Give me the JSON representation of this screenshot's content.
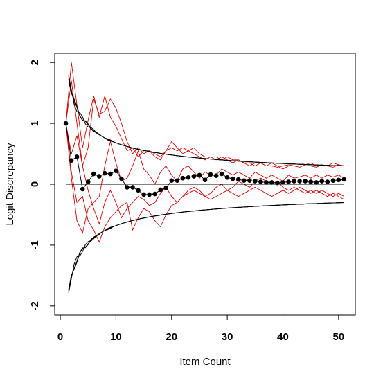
{
  "chart_data": {
    "type": "line",
    "title": "",
    "xlabel": "Item Count",
    "ylabel": "Logit Discrepancy",
    "xlim": [
      -1,
      53
    ],
    "ylim": [
      -2.15,
      2.15
    ],
    "x_ticks": [
      0,
      10,
      20,
      30,
      40,
      50
    ],
    "y_ticks": [
      -2,
      -1,
      0,
      1,
      2
    ],
    "grid": false,
    "legend": "none",
    "colors": {
      "mean": "#000000",
      "bounds": "#000000",
      "runs": "#cc0000",
      "zero": "#000000"
    },
    "mean_series": {
      "x": [
        1,
        2,
        3,
        4,
        5,
        6,
        7,
        8,
        9,
        10,
        11,
        12,
        13,
        14,
        15,
        16,
        17,
        18,
        19,
        20,
        21,
        22,
        23,
        24,
        25,
        26,
        27,
        28,
        29,
        30,
        31,
        32,
        33,
        34,
        35,
        36,
        37,
        38,
        39,
        40,
        41,
        42,
        43,
        44,
        45,
        46,
        47,
        48,
        49,
        50,
        51
      ],
      "y": [
        1.0,
        0.39,
        0.45,
        -0.08,
        0.04,
        0.17,
        0.13,
        0.18,
        0.17,
        0.22,
        0.09,
        -0.05,
        -0.05,
        -0.1,
        -0.17,
        -0.17,
        -0.16,
        -0.09,
        -0.06,
        0.06,
        0.06,
        0.1,
        0.11,
        0.13,
        0.15,
        0.07,
        0.16,
        0.14,
        0.17,
        0.11,
        0.09,
        0.08,
        0.06,
        0.06,
        0.05,
        0.04,
        0.03,
        0.03,
        0.02,
        0.03,
        0.04,
        0.05,
        0.05,
        0.05,
        0.04,
        0.03,
        0.05,
        0.04,
        0.06,
        0.07,
        0.08
      ]
    },
    "bound_coef": 2.15,
    "bound_start": 1.5,
    "bound_end": 51,
    "bound_noise": [
      [
        0,
        0,
        0.03,
        -0.05,
        0.03,
        -0.02,
        0.02,
        0,
        0,
        0.01,
        0,
        0,
        0,
        0,
        0,
        0
      ],
      [
        0,
        0,
        -0.03,
        0.04,
        -0.02,
        0.02,
        -0.01,
        0,
        0,
        -0.01,
        0,
        0,
        0,
        0,
        0,
        0
      ],
      [
        0,
        0,
        0,
        0.02,
        -0.03,
        0.03,
        0,
        0.01,
        0,
        0,
        0,
        0,
        0,
        0,
        0,
        0
      ]
    ],
    "run_series": [
      {
        "x": [
          1,
          2,
          3,
          4,
          5,
          6,
          7,
          8,
          9,
          10,
          11,
          12,
          13,
          14,
          15,
          16,
          17,
          18,
          19,
          20,
          21,
          22,
          23,
          24,
          25,
          26,
          27,
          28,
          29,
          30,
          31,
          32,
          33,
          34,
          35,
          36,
          37,
          38,
          39,
          40,
          41,
          42,
          43,
          44,
          45,
          46,
          47,
          48,
          49,
          50,
          51
        ],
        "y": [
          1.0,
          2.0,
          1.3,
          0.6,
          1.05,
          1.45,
          1.1,
          1.45,
          1.1,
          0.95,
          0.75,
          0.55,
          0.6,
          0.45,
          0.55,
          0.55,
          0.5,
          0.45,
          0.55,
          0.6,
          0.55,
          0.6,
          0.55,
          0.5,
          0.45,
          0.4,
          0.45,
          0.45,
          0.4,
          0.45,
          0.4,
          0.4,
          0.35,
          0.3,
          0.35,
          0.35,
          0.3,
          0.35,
          0.3,
          0.25,
          0.3,
          0.3,
          0.3,
          0.3,
          0.3,
          0.28,
          0.32,
          0.3,
          0.28,
          0.32,
          0.3
        ]
      },
      {
        "x": [
          1,
          2,
          3,
          4,
          5,
          6,
          7,
          8,
          9,
          10,
          11,
          12,
          13,
          14,
          15,
          16,
          17,
          18,
          19,
          20,
          21,
          22,
          23,
          24,
          25,
          26,
          27,
          28,
          29,
          30,
          31,
          32,
          33,
          34,
          35,
          36,
          37,
          38,
          39,
          40,
          41,
          42,
          43,
          44,
          45,
          46,
          47,
          48,
          49,
          50,
          51
        ],
        "y": [
          1.0,
          1.7,
          1.0,
          0.3,
          0.6,
          1.4,
          1.15,
          1.2,
          1.4,
          1.25,
          1.0,
          0.7,
          0.5,
          0.6,
          0.5,
          0.55,
          0.45,
          0.4,
          0.55,
          0.7,
          0.6,
          0.5,
          0.55,
          0.6,
          0.5,
          0.45,
          0.45,
          0.4,
          0.45,
          0.4,
          0.35,
          0.4,
          0.35,
          0.35,
          0.3,
          0.35,
          0.3,
          0.3,
          0.28,
          0.3,
          0.32,
          0.3,
          0.28,
          0.32,
          0.35,
          0.3,
          0.32,
          0.3,
          0.35,
          0.32,
          0.3
        ]
      },
      {
        "x": [
          1,
          2,
          3,
          4,
          5,
          6,
          7,
          8,
          9,
          10,
          11,
          12,
          13,
          14,
          15,
          16,
          17,
          18,
          19,
          20,
          21,
          22,
          23,
          24,
          25,
          26,
          27,
          28,
          29,
          30,
          31,
          32,
          33,
          34,
          35,
          36,
          37,
          38,
          39,
          40,
          41,
          42,
          43,
          44,
          45,
          46,
          47,
          48,
          49,
          50,
          51
        ],
        "y": [
          1.0,
          0.1,
          -0.6,
          -0.8,
          -0.4,
          -0.3,
          -0.2,
          0.3,
          0.7,
          0.35,
          0.05,
          0.1,
          0.3,
          0.55,
          0.25,
          0.15,
          0.0,
          0.2,
          0.3,
          0.15,
          0.05,
          0.25,
          0.3,
          0.2,
          0.1,
          0.2,
          0.15,
          0.15,
          0.25,
          0.2,
          0.15,
          0.2,
          0.15,
          0.1,
          0.2,
          0.15,
          0.1,
          0.15,
          0.1,
          0.05,
          0.15,
          0.1,
          0.12,
          0.15,
          0.1,
          0.15,
          0.1,
          0.15,
          0.12,
          0.15,
          0.1
        ]
      },
      {
        "x": [
          1,
          2,
          3,
          4,
          5,
          6,
          7,
          8,
          9,
          10,
          11,
          12,
          13,
          14,
          15,
          16,
          17,
          18,
          19,
          20,
          21,
          22,
          23,
          24,
          25,
          26,
          27,
          28,
          29,
          30,
          31,
          32,
          33,
          34,
          35,
          36,
          37,
          38,
          39,
          40,
          41,
          42,
          43,
          44,
          45,
          46,
          47,
          48,
          49,
          50,
          51
        ],
        "y": [
          1.0,
          0.2,
          -0.3,
          -0.2,
          -0.6,
          -0.75,
          -0.95,
          -0.7,
          -0.55,
          -0.45,
          -0.35,
          -0.3,
          -0.75,
          -0.55,
          -0.4,
          -0.45,
          -0.6,
          -0.7,
          -0.5,
          -0.35,
          -0.3,
          -0.2,
          -0.1,
          -0.05,
          -0.1,
          -0.2,
          -0.15,
          -0.05,
          0.0,
          -0.1,
          -0.05,
          0.05,
          0.0,
          -0.05,
          0.05,
          0.1,
          0.05,
          0.0,
          0.05,
          -0.05,
          -0.1,
          -0.05,
          -0.1,
          -0.15,
          -0.1,
          -0.15,
          -0.1,
          -0.15,
          -0.2,
          -0.15,
          -0.2
        ]
      },
      {
        "x": [
          1,
          2,
          3,
          4,
          5,
          6,
          7,
          8,
          9,
          10,
          11,
          12,
          13,
          14,
          15,
          16,
          17,
          18,
          19,
          20,
          21,
          22,
          23,
          24,
          25,
          26,
          27,
          28,
          29,
          30,
          31,
          32,
          33,
          34,
          35,
          36,
          37,
          38,
          39,
          40,
          41,
          42,
          43,
          44,
          45,
          46,
          47,
          48,
          49,
          50,
          51
        ],
        "y": [
          1.0,
          0.5,
          0.8,
          0.3,
          -0.1,
          -0.4,
          -0.65,
          -0.3,
          -0.1,
          -0.3,
          -0.55,
          -0.4,
          -0.3,
          -0.2,
          -0.25,
          -0.35,
          -0.3,
          -0.15,
          -0.05,
          -0.2,
          -0.3,
          -0.2,
          -0.15,
          -0.1,
          -0.15,
          -0.2,
          -0.25,
          -0.2,
          -0.15,
          -0.1,
          -0.15,
          -0.2,
          -0.15,
          -0.1,
          -0.05,
          -0.1,
          -0.15,
          -0.2,
          -0.15,
          -0.1,
          -0.15,
          -0.1,
          -0.05,
          -0.1,
          -0.15,
          -0.1,
          -0.15,
          -0.2,
          -0.15,
          -0.2,
          -0.25
        ]
      }
    ]
  }
}
